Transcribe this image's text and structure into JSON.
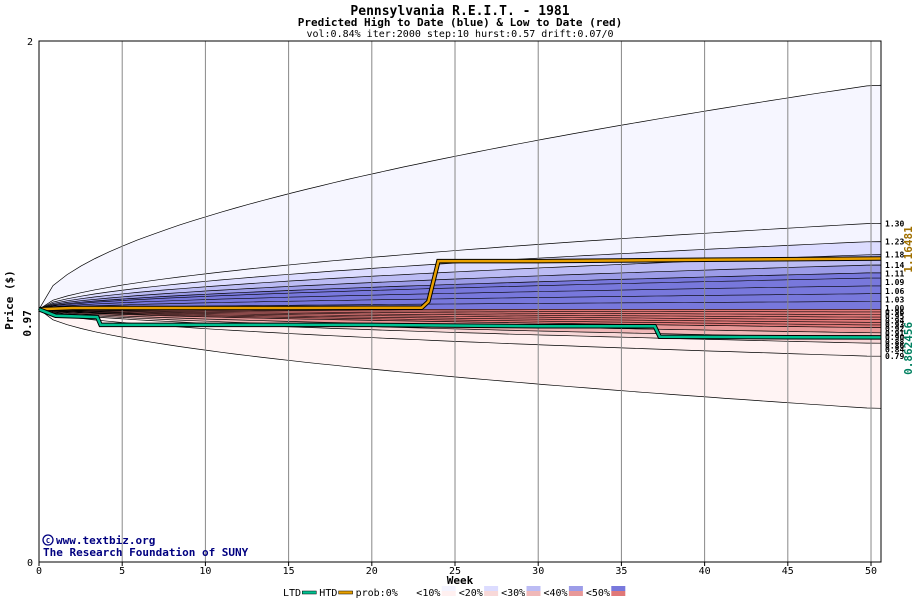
{
  "chart_data": {
    "type": "area",
    "title": "Pennsylvania R.E.I.T. - 1981",
    "subtitle": "Predicted High to Date (blue) &  Low to Date (red)",
    "params": "vol:0.84% iter:2000 step:10 hurst:0.57 drift:0.07/0",
    "xlabel": "Week",
    "ylabel": "Price ($)",
    "xlim": [
      0,
      50.6
    ],
    "ylim": [
      0,
      2
    ],
    "x_ticks": [
      "0",
      "5",
      "10",
      "15",
      "20",
      "25",
      "30",
      "35",
      "40",
      "45",
      "50"
    ],
    "y_ticks": [
      "0",
      "2"
    ],
    "start_price_label": "0.97",
    "start_price": 0.97,
    "htd_final_label": "1.16481",
    "ltd_final_label": "0.862456",
    "end_labels": [
      "1.30",
      "1.23",
      "1.18",
      "1.14",
      "1.11",
      "1.09",
      "1.06",
      "1.03",
      "1.00",
      "0.96",
      "0.95",
      "0.94",
      "0.93",
      "0.92",
      "0.91",
      "0.90",
      "0.88",
      "0.86",
      "0.84",
      "0.79"
    ],
    "high_bands": [
      {
        "name": "prob:0%",
        "at_week_50": 1.83
      },
      {
        "name": "<10%",
        "at_week_50": 1.3
      },
      {
        "name": "<20%",
        "at_week_50": 1.23
      },
      {
        "name": "<30%",
        "at_week_50": 1.18
      },
      {
        "name": "<40%",
        "at_week_50": 1.14
      },
      {
        "name": "<50%",
        "at_week_50": 1.11
      }
    ],
    "low_bands": [
      {
        "name": "prob:0%",
        "at_week_50": 0.59
      },
      {
        "name": "<10%",
        "at_week_50": 0.79
      },
      {
        "name": "<20%",
        "at_week_50": 0.84
      },
      {
        "name": "<30%",
        "at_week_50": 0.86
      },
      {
        "name": "<40%",
        "at_week_50": 0.88
      },
      {
        "name": "<50%",
        "at_week_50": 0.9
      }
    ],
    "htd_series": {
      "name": "HTD",
      "color": "#e8a000",
      "points": [
        [
          0,
          0.97
        ],
        [
          2,
          0.975
        ],
        [
          5,
          0.975
        ],
        [
          10,
          0.975
        ],
        [
          15,
          0.975
        ],
        [
          20,
          0.976
        ],
        [
          23,
          0.976
        ],
        [
          23.4,
          1.0
        ],
        [
          24,
          1.155
        ],
        [
          30,
          1.155
        ],
        [
          40,
          1.16
        ],
        [
          50.6,
          1.165
        ]
      ]
    },
    "ltd_series": {
      "name": "LTD",
      "color": "#00c090",
      "points": [
        [
          0,
          0.97
        ],
        [
          1,
          0.945
        ],
        [
          3.5,
          0.94
        ],
        [
          3.7,
          0.91
        ],
        [
          10,
          0.91
        ],
        [
          20,
          0.91
        ],
        [
          30,
          0.905
        ],
        [
          37,
          0.905
        ],
        [
          37.3,
          0.865
        ],
        [
          45,
          0.863
        ],
        [
          50.6,
          0.862
        ]
      ]
    },
    "colors": {
      "high_10": "#f4f4ff",
      "high_20": "#dcdcff",
      "high_30": "#bcbcf4",
      "high_40": "#9c9ce8",
      "high_50": "#7878dc",
      "low_10": "#fff0f0",
      "low_20": "#f8d8d8",
      "low_30": "#f0b8b8",
      "low_40": "#e89898",
      "low_50": "#e07878",
      "htd_label": "#a07000",
      "ltd_label": "#008060"
    },
    "legend": {
      "items": [
        "LTD",
        "HTD",
        "prob:0%",
        "<10%",
        "<20%",
        "<30%",
        "<40%",
        "<50%"
      ],
      "placement": "bottom"
    },
    "credit": [
      "www.textbiz.org",
      "The Research Foundation of SUNY"
    ]
  }
}
